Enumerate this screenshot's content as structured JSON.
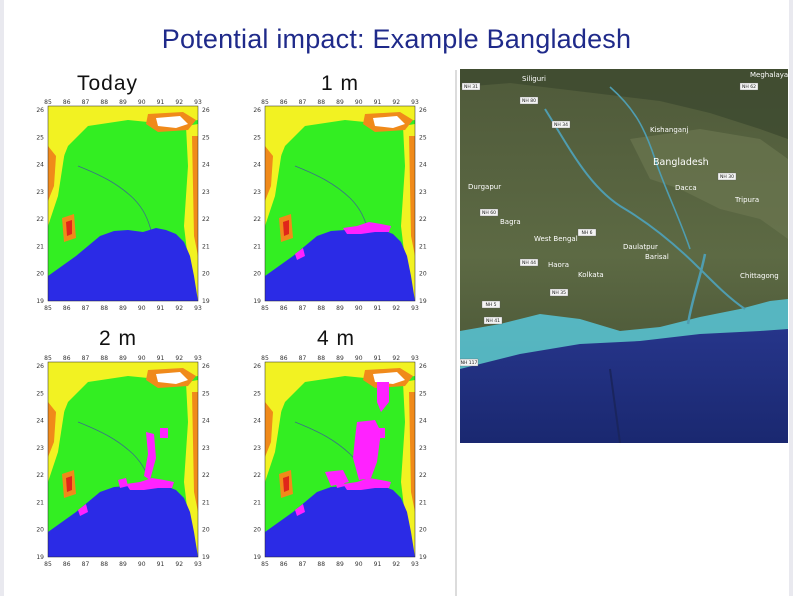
{
  "slide": {
    "title": "Potential impact: Example Bangladesh"
  },
  "panels": [
    {
      "label": "Today",
      "lon_ticks": [
        "85",
        "86",
        "87",
        "88",
        "89",
        "90",
        "91",
        "92",
        "93"
      ],
      "lat_ticks": [
        "26",
        "25",
        "24",
        "23",
        "22",
        "21",
        "20",
        "19"
      ],
      "sea_level_rise_m": 0
    },
    {
      "label": "1 m",
      "lon_ticks": [
        "85",
        "86",
        "87",
        "88",
        "89",
        "90",
        "91",
        "92",
        "93"
      ],
      "lat_ticks": [
        "26",
        "25",
        "24",
        "23",
        "22",
        "21",
        "20",
        "19"
      ],
      "sea_level_rise_m": 1
    },
    {
      "label": "2 m",
      "lon_ticks": [
        "85",
        "86",
        "87",
        "88",
        "89",
        "90",
        "91",
        "92",
        "93"
      ],
      "lat_ticks": [
        "26",
        "25",
        "24",
        "23",
        "22",
        "21",
        "20",
        "19"
      ],
      "sea_level_rise_m": 2
    },
    {
      "label": "4 m",
      "lon_ticks": [
        "85",
        "86",
        "87",
        "88",
        "89",
        "90",
        "91",
        "92",
        "93"
      ],
      "lat_ticks": [
        "26",
        "25",
        "24",
        "23",
        "22",
        "21",
        "20",
        "19"
      ],
      "sea_level_rise_m": 4
    }
  ],
  "satellite": {
    "places": {
      "meghalaya": "Meghalaya",
      "bangladesh": "Bangladesh",
      "dacca": "Dacca",
      "tripura": "Tripura",
      "west_bengal": "West Bengal",
      "daulatpur": "Daulatpur",
      "kolkata": "Kolkata",
      "chittagong": "Chittagong",
      "siliguri": "Siliguri",
      "kishanganj": "Kishanganj",
      "durgapur": "Durgapur",
      "bagra": "Bagra",
      "haora": "Haora",
      "barisal": "Barisal"
    },
    "roads": [
      "NH 31",
      "NH 62",
      "NH 34",
      "NH 80",
      "NH 60",
      "NH 6",
      "NH 5",
      "NH 41",
      "NH 35",
      "NH 44",
      "NH 30",
      "NH 117"
    ]
  },
  "colors": {
    "title": "#1f2a8a",
    "sea": "#2b2be6",
    "lowland": "#33ee22",
    "upland": "#f2f222",
    "hills": "#f08a1a",
    "peaks": "#e0261a",
    "snow": "#ffffff",
    "flooded": "#ff22ff"
  }
}
